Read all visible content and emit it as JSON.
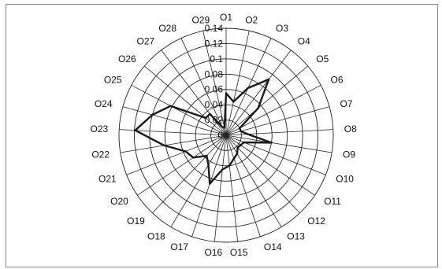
{
  "chart_data": {
    "type": "radar",
    "title": "",
    "categories": [
      "O1",
      "O2",
      "O3",
      "O4",
      "O5",
      "O6",
      "O7",
      "O8",
      "O9",
      "O10",
      "O11",
      "O12",
      "O13",
      "O14",
      "O15",
      "O16",
      "O17",
      "O18",
      "O19",
      "O20",
      "O21",
      "O22",
      "O23",
      "O24",
      "O25",
      "O26",
      "O27",
      "O28",
      "O29"
    ],
    "series": [
      {
        "values": [
          0.055,
          0.045,
          0.068,
          0.092,
          0.055,
          0.02,
          0.02,
          0.028,
          0.06,
          0.025,
          0.023,
          0.022,
          0.028,
          0.032,
          0.04,
          0.045,
          0.067,
          0.045,
          0.037,
          0.052,
          0.057,
          0.082,
          0.119,
          0.1,
          0.082,
          0.035,
          0.035,
          0.012,
          0.01
        ]
      }
    ],
    "radial_ticks": [
      "0",
      "0.02",
      "0.04",
      "0.06",
      "0.08",
      "0.1",
      "0.12",
      "0.14"
    ],
    "rlim": [
      0,
      0.14
    ],
    "grid": true,
    "legend": "none",
    "colors": {
      "series": "#1a1a1a",
      "grid": "#222222",
      "frame": "#8a8a8a"
    }
  }
}
